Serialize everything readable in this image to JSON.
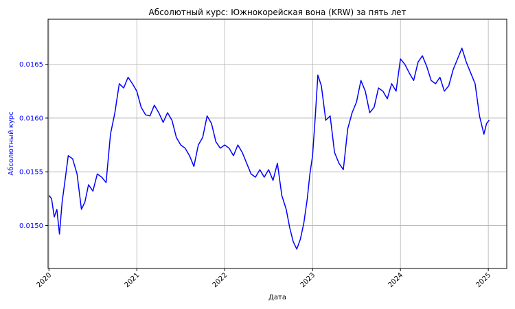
{
  "chart_data": {
    "type": "line",
    "title": "Абсолютный курс: Южнокорейская вона (KRW) за пять лет",
    "xlabel": "Дата",
    "ylabel": "Абсолютный курс",
    "x_ticks": [
      "2020",
      "2021",
      "2022",
      "2023",
      "2024",
      "2025"
    ],
    "y_ticks": [
      "0.0150",
      "0.0155",
      "0.0160",
      "0.0165"
    ],
    "xlim": [
      2019.99,
      2025.21
    ],
    "ylim": [
      0.0146,
      0.01692
    ],
    "grid": true,
    "colors": {
      "line": "#0000ff",
      "ylabel": "#0000ff",
      "axes": "#000000",
      "grid": "#b0b0b0"
    },
    "series": [
      {
        "x": [
          2020.0,
          2020.03,
          2020.06,
          2020.09,
          2020.12,
          2020.15,
          2020.18,
          2020.22,
          2020.27,
          2020.32,
          2020.37,
          2020.41,
          2020.45,
          2020.5,
          2020.55,
          2020.6,
          2020.65,
          2020.7,
          2020.75,
          2020.8,
          2020.85,
          2020.9,
          2020.95,
          2021.0,
          2021.05,
          2021.1,
          2021.15,
          2021.2,
          2021.25,
          2021.3,
          2021.35,
          2021.4,
          2021.45,
          2021.5,
          2021.55,
          2021.6,
          2021.65,
          2021.7,
          2021.75,
          2021.8,
          2021.85,
          2021.9,
          2021.95,
          2022.0,
          2022.05,
          2022.1,
          2022.15,
          2022.2,
          2022.25,
          2022.3,
          2022.35,
          2022.4,
          2022.45,
          2022.5,
          2022.55,
          2022.6,
          2022.65,
          2022.7,
          2022.74,
          2022.78,
          2022.82,
          2022.86,
          2022.9,
          2022.94,
          2022.97,
          2023.0,
          2023.03,
          2023.06,
          2023.1,
          2023.15,
          2023.2,
          2023.25,
          2023.3,
          2023.35,
          2023.4,
          2023.45,
          2023.5,
          2023.55,
          2023.6,
          2023.65,
          2023.7,
          2023.75,
          2023.8,
          2023.85,
          2023.9,
          2023.95,
          2024.0,
          2024.05,
          2024.1,
          2024.15,
          2024.2,
          2024.25,
          2024.3,
          2024.35,
          2024.4,
          2024.45,
          2024.5,
          2024.55,
          2024.6,
          2024.65,
          2024.7,
          2024.75,
          2024.8,
          2024.85,
          2024.9,
          2024.95,
          2024.98,
          2025.01
        ],
        "y": [
          0.01528,
          0.01525,
          0.01508,
          0.01515,
          0.01492,
          0.01522,
          0.0154,
          0.01565,
          0.01562,
          0.01548,
          0.01515,
          0.01522,
          0.01538,
          0.01532,
          0.01548,
          0.01545,
          0.0154,
          0.01585,
          0.01605,
          0.01632,
          0.01628,
          0.01638,
          0.01632,
          0.01625,
          0.0161,
          0.01603,
          0.01602,
          0.01612,
          0.01605,
          0.01596,
          0.01605,
          0.01598,
          0.01582,
          0.01575,
          0.01572,
          0.01565,
          0.01555,
          0.01575,
          0.01582,
          0.01602,
          0.01595,
          0.01578,
          0.01572,
          0.01575,
          0.01572,
          0.01565,
          0.01575,
          0.01568,
          0.01558,
          0.01548,
          0.01545,
          0.01552,
          0.01545,
          0.01552,
          0.01542,
          0.01558,
          0.01528,
          0.01515,
          0.01498,
          0.01485,
          0.01478,
          0.01487,
          0.01502,
          0.01525,
          0.01548,
          0.01565,
          0.016,
          0.0164,
          0.0163,
          0.01598,
          0.01602,
          0.01568,
          0.01558,
          0.01552,
          0.0159,
          0.01605,
          0.01615,
          0.01635,
          0.01625,
          0.01605,
          0.0161,
          0.01628,
          0.01625,
          0.01618,
          0.01632,
          0.01625,
          0.01655,
          0.0165,
          0.01642,
          0.01635,
          0.01652,
          0.01658,
          0.01648,
          0.01635,
          0.01632,
          0.01638,
          0.01625,
          0.0163,
          0.01645,
          0.01655,
          0.01665,
          0.01652,
          0.01642,
          0.01632,
          0.01602,
          0.01585,
          0.01595,
          0.01598
        ]
      }
    ]
  }
}
